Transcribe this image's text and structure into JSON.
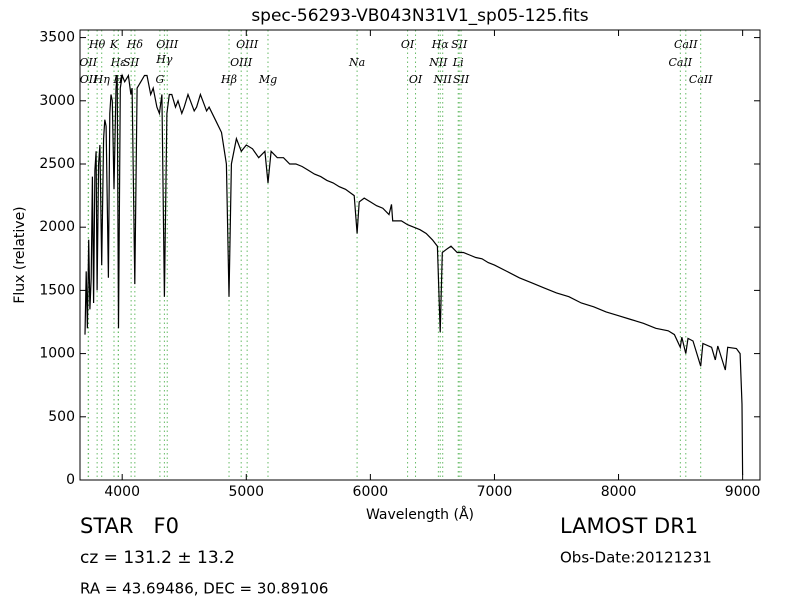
{
  "chart_data": {
    "type": "line",
    "title": "spec-56293-VB043N31V1_sp05-125.fits",
    "x_label": "Wavelength (Å)",
    "y_label": "Flux (relative)",
    "xlim": [
      3660,
      9140
    ],
    "ylim": [
      0,
      3560
    ],
    "xticks": [
      4000,
      5000,
      6000,
      7000,
      8000,
      9000
    ],
    "yticks": [
      0,
      500,
      1000,
      1500,
      2000,
      2500,
      3000,
      3500
    ],
    "color": "#000000",
    "line_color": "#66bb66",
    "x": [
      3700,
      3710,
      3720,
      3730,
      3740,
      3750,
      3760,
      3770,
      3780,
      3790,
      3798,
      3810,
      3820,
      3835,
      3850,
      3860,
      3870,
      3889,
      3900,
      3910,
      3920,
      3934,
      3950,
      3960,
      3970,
      3985,
      4000,
      4020,
      4050,
      4070,
      4080,
      4102,
      4120,
      4150,
      4180,
      4200,
      4230,
      4250,
      4280,
      4300,
      4320,
      4340,
      4360,
      4380,
      4400,
      4430,
      4450,
      4480,
      4500,
      4530,
      4550,
      4580,
      4600,
      4630,
      4650,
      4680,
      4700,
      4750,
      4800,
      4840,
      4861,
      4880,
      4920,
      4960,
      5000,
      5050,
      5100,
      5150,
      5175,
      5200,
      5250,
      5300,
      5350,
      5400,
      5450,
      5500,
      5550,
      5600,
      5650,
      5700,
      5750,
      5800,
      5870,
      5893,
      5910,
      5950,
      6000,
      6050,
      6100,
      6150,
      6170,
      6180,
      6250,
      6300,
      6350,
      6400,
      6450,
      6500,
      6540,
      6563,
      6580,
      6620,
      6650,
      6700,
      6750,
      6800,
      6850,
      6900,
      6950,
      7000,
      7100,
      7200,
      7300,
      7400,
      7500,
      7600,
      7700,
      7800,
      7900,
      8000,
      8100,
      8200,
      8300,
      8400,
      8450,
      8498,
      8510,
      8542,
      8560,
      8600,
      8662,
      8680,
      8750,
      8780,
      8800,
      8860,
      8880,
      8950,
      8980,
      8995,
      9000
    ],
    "values": [
      1150,
      1650,
      1200,
      1900,
      1350,
      1600,
      2400,
      1400,
      2450,
      2600,
      1500,
      2500,
      2650,
      1700,
      2700,
      2850,
      2800,
      1600,
      2900,
      3050,
      3000,
      2300,
      3100,
      3200,
      1200,
      3100,
      3200,
      3150,
      3200,
      3050,
      3100,
      1550,
      3100,
      3150,
      3200,
      3200,
      3050,
      3100,
      2950,
      2900,
      3050,
      1450,
      2900,
      3050,
      3050,
      2950,
      3000,
      2900,
      2950,
      3050,
      3000,
      2920,
      2950,
      3050,
      3000,
      2920,
      2950,
      2850,
      2750,
      2500,
      1450,
      2500,
      2700,
      2600,
      2650,
      2620,
      2550,
      2600,
      2350,
      2600,
      2550,
      2550,
      2500,
      2500,
      2480,
      2450,
      2420,
      2400,
      2370,
      2350,
      2320,
      2300,
      2250,
      1950,
      2200,
      2230,
      2200,
      2170,
      2150,
      2100,
      2180,
      2050,
      2050,
      2020,
      2000,
      1980,
      1950,
      1900,
      1850,
      1170,
      1800,
      1830,
      1850,
      1800,
      1800,
      1780,
      1760,
      1750,
      1720,
      1700,
      1650,
      1600,
      1560,
      1520,
      1480,
      1450,
      1400,
      1370,
      1330,
      1300,
      1270,
      1240,
      1200,
      1180,
      1150,
      1050,
      1130,
      1000,
      1120,
      1100,
      900,
      1080,
      1050,
      950,
      1060,
      870,
      1050,
      1040,
      1000,
      600,
      40
    ],
    "spectral_lines": [
      {
        "label": "OII",
        "wavelength": 3726
      },
      {
        "label": "OII",
        "wavelength": 3729
      },
      {
        "label": "Hθ",
        "wavelength": 3798
      },
      {
        "label": "Hη",
        "wavelength": 3835
      },
      {
        "label": "Hε",
        "wavelength": 3970
      },
      {
        "label": "K",
        "wavelength": 3934
      },
      {
        "label": "H",
        "wavelength": 3968
      },
      {
        "label": "SII",
        "wavelength": 4072
      },
      {
        "label": "Hδ",
        "wavelength": 4102
      },
      {
        "label": "G",
        "wavelength": 4304
      },
      {
        "label": "Hγ",
        "wavelength": 4340
      },
      {
        "label": "OIII",
        "wavelength": 4363
      },
      {
        "label": "Hβ",
        "wavelength": 4861
      },
      {
        "label": "OIII",
        "wavelength": 4959
      },
      {
        "label": "OIII",
        "wavelength": 5007
      },
      {
        "label": "Mg",
        "wavelength": 5175
      },
      {
        "label": "Na",
        "wavelength": 5893
      },
      {
        "label": "OI",
        "wavelength": 6300
      },
      {
        "label": "OI",
        "wavelength": 6364
      },
      {
        "label": "NII",
        "wavelength": 6548
      },
      {
        "label": "Hα",
        "wavelength": 6563
      },
      {
        "label": "NII",
        "wavelength": 6583
      },
      {
        "label": "Li",
        "wavelength": 6708
      },
      {
        "label": "SII",
        "wavelength": 6716
      },
      {
        "label": "SII",
        "wavelength": 6731
      },
      {
        "label": "CaII",
        "wavelength": 8498
      },
      {
        "label": "CaII",
        "wavelength": 8542
      },
      {
        "label": "CaII",
        "wavelength": 8662
      }
    ],
    "object_class": "STAR   F0",
    "redshift": "cz = 131.2 ± 13.2",
    "coordinates": "RA = 43.69486, DEC = 30.89106",
    "survey": "LAMOST DR1",
    "obs_date": "Obs-Date:20121231"
  }
}
